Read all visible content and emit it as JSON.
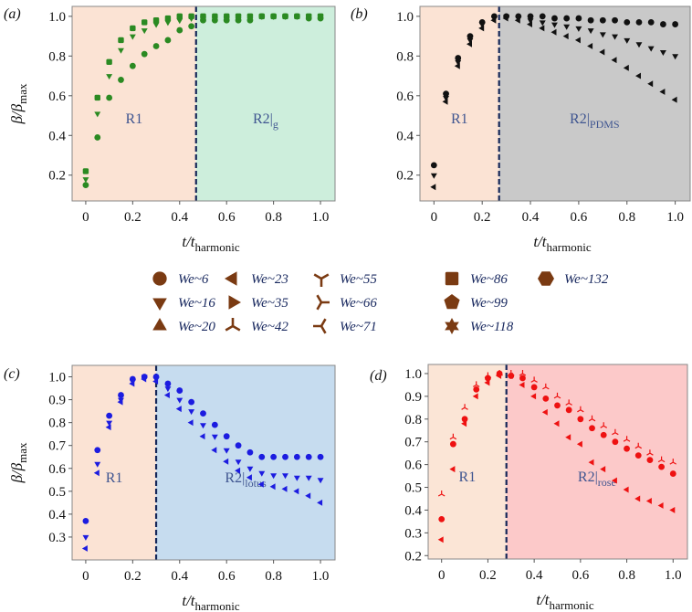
{
  "legend": [
    {
      "label": "We~6",
      "marker": "circle"
    },
    {
      "label": "We~16",
      "marker": "tri-down"
    },
    {
      "label": "We~20",
      "marker": "tri-up"
    },
    {
      "label": "We~23",
      "marker": "tri-left"
    },
    {
      "label": "We~35",
      "marker": "tri-right"
    },
    {
      "label": "We~42",
      "marker": "y-down"
    },
    {
      "label": "We~55",
      "marker": "y-up"
    },
    {
      "label": "We~66",
      "marker": "y-left"
    },
    {
      "label": "We~71",
      "marker": "y-right"
    },
    {
      "label": "We~86",
      "marker": "square"
    },
    {
      "label": "We~99",
      "marker": "pentagon"
    },
    {
      "label": "We~118",
      "marker": "star"
    },
    {
      "label": "We~132",
      "marker": "hexagon"
    }
  ],
  "legend_color": "#7a3a12",
  "chart_data": [
    {
      "type": "scatter",
      "panel": "(a)",
      "xlabel": "t/t",
      "xlabel_sub": "harmonic",
      "ylabel": "β/β",
      "ylabel_sub": "max",
      "xlim": [
        -0.058,
        1.062
      ],
      "ylim": [
        0.07,
        1.05
      ],
      "xticks": [
        0,
        0.2,
        0.4,
        0.6,
        0.8,
        1.0
      ],
      "xtick_labels": [
        "0",
        "0.2",
        "0.4",
        "0.6",
        "0.8",
        "1.0"
      ],
      "yticks": [
        0.2,
        0.4,
        0.6,
        0.8,
        1.0
      ],
      "ytick_labels": [
        "0.2",
        "0.4",
        "0.6",
        "0.8",
        "1.0"
      ],
      "split": 0.47,
      "r1_label": "R1",
      "r2_label": "R2|",
      "r2_sub": "g",
      "r1_color": "#fbe3d4",
      "r2_color": "#cdeedc",
      "marker_color": "#2b8a22",
      "x": [
        0,
        0.05,
        0.1,
        0.15,
        0.2,
        0.25,
        0.3,
        0.35,
        0.4,
        0.45,
        0.5,
        0.55,
        0.6,
        0.65,
        0.7,
        0.75,
        0.8,
        0.85,
        0.9,
        0.95,
        1.0
      ],
      "series": [
        {
          "name": "We~6",
          "marker": "circle",
          "values": [
            0.15,
            0.39,
            0.59,
            0.68,
            0.75,
            0.81,
            0.85,
            0.88,
            0.93,
            0.95,
            0.98,
            0.98,
            0.98,
            0.98,
            0.98,
            1,
            1,
            1,
            1,
            0.99,
            0.99
          ]
        },
        {
          "name": "We~16",
          "marker": "tri-down",
          "values": [
            0.18,
            0.51,
            0.7,
            0.83,
            0.9,
            0.93,
            0.96,
            0.97,
            0.98,
            0.99,
            0.99,
            0.99,
            0.99,
            1,
            1,
            1,
            1,
            1,
            1,
            1,
            1
          ]
        },
        {
          "name": "We~86",
          "marker": "square",
          "values": [
            0.22,
            0.59,
            0.77,
            0.88,
            0.94,
            0.97,
            0.98,
            0.99,
            1,
            1,
            1,
            1,
            1,
            1,
            1,
            1,
            1,
            1,
            1,
            1,
            1
          ]
        }
      ]
    },
    {
      "type": "scatter",
      "panel": "(b)",
      "xlabel": "t/t",
      "xlabel_sub": "harmonic",
      "ylabel": "",
      "ylabel_sub": "",
      "xlim": [
        -0.058,
        1.062
      ],
      "ylim": [
        0.07,
        1.05
      ],
      "xticks": [
        0,
        0.2,
        0.4,
        0.6,
        0.8,
        1.0
      ],
      "xtick_labels": [
        "0",
        "0.2",
        "0.4",
        "0.6",
        "0.8",
        "1.0"
      ],
      "yticks": [
        0.2,
        0.4,
        0.6,
        0.8,
        1.0
      ],
      "ytick_labels": [
        "0.2",
        "0.4",
        "0.6",
        "0.8",
        "1.0"
      ],
      "split": 0.27,
      "r1_label": "R1",
      "r2_label": "R2|",
      "r2_sub": "PDMS",
      "r1_color": "#fbe3d4",
      "r2_color": "#c9c9c9",
      "marker_color": "#111111",
      "x": [
        0,
        0.05,
        0.1,
        0.15,
        0.2,
        0.25,
        0.3,
        0.35,
        0.4,
        0.45,
        0.5,
        0.55,
        0.6,
        0.65,
        0.7,
        0.75,
        0.8,
        0.85,
        0.9,
        0.95,
        1.0
      ],
      "series": [
        {
          "name": "We~6",
          "marker": "circle",
          "values": [
            0.25,
            0.61,
            0.79,
            0.9,
            0.97,
            1,
            1,
            1,
            1,
            1,
            0.99,
            0.99,
            0.99,
            0.98,
            0.98,
            0.98,
            0.97,
            0.97,
            0.97,
            0.96,
            0.96
          ]
        },
        {
          "name": "We~16",
          "marker": "tri-down",
          "values": [
            0.2,
            0.59,
            0.77,
            0.88,
            0.96,
            0.99,
            1,
            0.99,
            0.98,
            0.97,
            0.96,
            0.95,
            0.94,
            0.93,
            0.91,
            0.9,
            0.88,
            0.86,
            0.84,
            0.82,
            0.8
          ]
        },
        {
          "name": "We~23",
          "marker": "tri-left",
          "values": [
            0.14,
            0.57,
            0.75,
            0.86,
            0.94,
            0.98,
            0.99,
            0.98,
            0.96,
            0.94,
            0.92,
            0.9,
            0.88,
            0.85,
            0.82,
            0.78,
            0.74,
            0.7,
            0.66,
            0.62,
            0.58
          ]
        }
      ]
    },
    {
      "type": "scatter",
      "panel": "(c)",
      "xlabel": "t/t",
      "xlabel_sub": "harmonic",
      "ylabel": "β/β",
      "ylabel_sub": "max",
      "xlim": [
        -0.058,
        1.062
      ],
      "ylim": [
        0.2,
        1.05
      ],
      "xticks": [
        0,
        0.2,
        0.4,
        0.6,
        0.8,
        1.0
      ],
      "xtick_labels": [
        "0",
        "0.2",
        "0.4",
        "0.6",
        "0.8",
        "1.0"
      ],
      "yticks": [
        0.3,
        0.4,
        0.5,
        0.6,
        0.7,
        0.8,
        0.9,
        1.0
      ],
      "ytick_labels": [
        "0.3",
        "0.4",
        "0.5",
        "0.6",
        "0.7",
        "0.8",
        "0.9",
        "1.0"
      ],
      "split": 0.3,
      "r1_label": "R1",
      "r2_label": "R2|",
      "r2_sub": "lotus",
      "r1_color": "#fbe3d4",
      "r2_color": "#c6dcef",
      "marker_color": "#1c1ce0",
      "x": [
        0,
        0.05,
        0.1,
        0.15,
        0.2,
        0.25,
        0.3,
        0.35,
        0.4,
        0.45,
        0.5,
        0.55,
        0.6,
        0.65,
        0.7,
        0.75,
        0.8,
        0.85,
        0.9,
        0.95,
        1.0
      ],
      "series": [
        {
          "name": "We~6",
          "marker": "circle",
          "values": [
            0.37,
            0.68,
            0.83,
            0.92,
            0.99,
            1,
            1,
            0.97,
            0.94,
            0.89,
            0.84,
            0.79,
            0.74,
            0.7,
            0.67,
            0.65,
            0.65,
            0.65,
            0.65,
            0.65,
            0.65
          ]
        },
        {
          "name": "We~16",
          "marker": "tri-down",
          "values": [
            0.3,
            0.62,
            0.8,
            0.9,
            0.98,
            1,
            0.99,
            0.95,
            0.9,
            0.85,
            0.79,
            0.74,
            0.68,
            0.63,
            0.6,
            0.58,
            0.57,
            0.57,
            0.56,
            0.56,
            0.55
          ]
        },
        {
          "name": "We~23",
          "marker": "tri-left",
          "values": [
            0.25,
            0.58,
            0.78,
            0.89,
            0.97,
            0.99,
            0.98,
            0.92,
            0.86,
            0.8,
            0.74,
            0.68,
            0.63,
            0.59,
            0.56,
            0.53,
            0.52,
            0.51,
            0.5,
            0.48,
            0.45
          ]
        }
      ]
    },
    {
      "type": "scatter",
      "panel": "(d)",
      "xlabel": "t/t",
      "xlabel_sub": "harmonic",
      "ylabel": "",
      "ylabel_sub": "",
      "xlim": [
        -0.058,
        1.062
      ],
      "ylim": [
        0.185,
        1.04
      ],
      "xticks": [
        0,
        0.2,
        0.4,
        0.6,
        0.8,
        1.0
      ],
      "xtick_labels": [
        "0",
        "0.2",
        "0.4",
        "0.6",
        "0.8",
        "1.0"
      ],
      "yticks": [
        0.2,
        0.3,
        0.4,
        0.5,
        0.6,
        0.7,
        0.8,
        0.9,
        1.0
      ],
      "ytick_labels": [
        "0.2",
        "0.3",
        "0.4",
        "0.5",
        "0.6",
        "0.7",
        "0.8",
        "0.9",
        "1.0"
      ],
      "split": 0.28,
      "r1_label": "R1",
      "r2_label": "R2|",
      "r2_sub": "rose",
      "r1_color": "#fbe5d6",
      "r2_color": "#fcc9c9",
      "marker_color": "#ee1111",
      "x": [
        0,
        0.05,
        0.1,
        0.15,
        0.2,
        0.25,
        0.3,
        0.35,
        0.4,
        0.45,
        0.5,
        0.55,
        0.6,
        0.65,
        0.7,
        0.75,
        0.8,
        0.85,
        0.9,
        0.95,
        1.0
      ],
      "series": [
        {
          "name": "We~42",
          "marker": "y-down",
          "values": [
            0.47,
            0.72,
            0.85,
            0.95,
            0.99,
            1,
            1,
            1,
            0.97,
            0.94,
            0.9,
            0.87,
            0.84,
            0.8,
            0.77,
            0.74,
            0.71,
            0.68,
            0.65,
            0.62,
            0.61
          ]
        },
        {
          "name": "We~6",
          "marker": "circle",
          "values": [
            0.36,
            0.69,
            0.8,
            0.93,
            0.98,
            1,
            0.99,
            0.98,
            0.94,
            0.89,
            0.86,
            0.84,
            0.8,
            0.76,
            0.73,
            0.7,
            0.67,
            0.64,
            0.62,
            0.59,
            0.56
          ]
        },
        {
          "name": "We~23",
          "marker": "tri-left",
          "values": [
            0.27,
            0.58,
            0.78,
            0.9,
            0.96,
            0.99,
            0.99,
            0.95,
            0.9,
            0.83,
            0.78,
            0.72,
            0.69,
            0.61,
            0.58,
            0.53,
            0.49,
            0.45,
            0.44,
            0.42,
            0.4
          ]
        }
      ]
    }
  ]
}
